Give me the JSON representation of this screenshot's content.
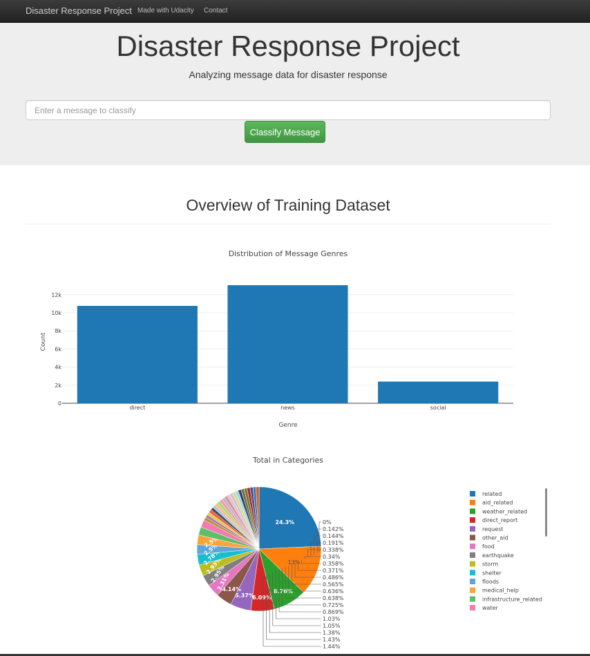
{
  "navbar": {
    "brand": "Disaster Response Project",
    "links": [
      "Made with Udacity",
      "Contact"
    ]
  },
  "header": {
    "title": "Disaster Response Project",
    "subtitle": "Analyzing message data for disaster response",
    "input_placeholder": "Enter a message to classify",
    "button_label": "Classify Message"
  },
  "overview": {
    "title": "Overview of Training Dataset"
  },
  "colors": {
    "navbar": "#222222",
    "jumbotron": "#eeeeee",
    "button": "#5cb85c",
    "bar": "#1f77b4"
  },
  "chart_data": [
    {
      "type": "bar",
      "title": "Distribution of Message Genres",
      "xlabel": "Genre",
      "ylabel": "Count",
      "categories": [
        "direct",
        "news",
        "social"
      ],
      "values": [
        10766,
        13054,
        2396
      ],
      "ylim": [
        0,
        13054
      ],
      "ytick_values": [
        0,
        2000,
        4000,
        6000,
        8000,
        10000,
        12000
      ],
      "ytick_labels": [
        "0",
        "2k",
        "4k",
        "6k",
        "8k",
        "10k",
        "12k"
      ],
      "grid": true
    },
    {
      "type": "pie",
      "title": "Total in Categories",
      "legend_position": "right",
      "slices": [
        {
          "name": "related",
          "percent": 24.3,
          "label": "24.3%",
          "color": "#1f77b4"
        },
        {
          "name": "aid_related",
          "percent": 13.0,
          "label": "13%",
          "color": "#ff7f0e"
        },
        {
          "name": "weather_related",
          "percent": 8.76,
          "label": "8.76%",
          "color": "#2ca02c"
        },
        {
          "name": "direct_report",
          "percent": 6.09,
          "label": "6.09%",
          "color": "#d62728"
        },
        {
          "name": "request",
          "percent": 5.37,
          "label": "5.37%",
          "color": "#9467bd"
        },
        {
          "name": "other_aid",
          "percent": 4.14,
          "label": "4.14%",
          "color": "#8c564b"
        },
        {
          "name": "food",
          "percent": 3.31,
          "label": "3.31%",
          "color": "#e377c2"
        },
        {
          "name": "earthquake",
          "percent": 2.95,
          "label": "2.95%",
          "color": "#7f7f7f"
        },
        {
          "name": "storm",
          "percent": 2.93,
          "label": "2.93%",
          "color": "#bcbd22"
        },
        {
          "name": "shelter",
          "percent": 2.78,
          "label": "2.78%",
          "color": "#17becf"
        },
        {
          "name": "floods",
          "percent": 2.5,
          "label": "2.5%",
          "color": "#5da5da"
        },
        {
          "name": "medical_help",
          "percent": 2.5,
          "label": "2.5%",
          "color": "#faa43a"
        },
        {
          "name": "infrastructure_related",
          "percent": 2.1,
          "label": "",
          "color": "#60bd68"
        },
        {
          "name": "water",
          "percent": 2.0,
          "label": "",
          "color": "#f17cb0"
        }
      ],
      "remaining_slice_colors": [
        "#b2912f",
        "#b276b2",
        "#decf3f",
        "#f15854",
        "#4d4d4d",
        "#aec7e8",
        "#ffbb78",
        "#98df8a",
        "#ff9896",
        "#c5b0d5",
        "#c49c94",
        "#f7b6d2",
        "#c7c7c7",
        "#dbdb8d",
        "#9edae5",
        "#393b79",
        "#637939",
        "#8c6d31",
        "#843c39",
        "#7b4173",
        "#3182bd",
        "#e6550d"
      ],
      "outside_labels": [
        "1.44%",
        "1.43%",
        "1.38%",
        "1.05%",
        "1.03%",
        "0.869%",
        "0.725%",
        "0.638%",
        "0.636%",
        "0.565%",
        "0.486%",
        "0.371%",
        "0.358%",
        "0.34%",
        "0.338%",
        "0.191%",
        "0.144%",
        "0.142%",
        "0%"
      ],
      "legend": [
        "related",
        "aid_related",
        "weather_related",
        "direct_report",
        "request",
        "other_aid",
        "food",
        "earthquake",
        "storm",
        "shelter",
        "floods",
        "medical_help",
        "infrastructure_related",
        "water"
      ]
    }
  ]
}
